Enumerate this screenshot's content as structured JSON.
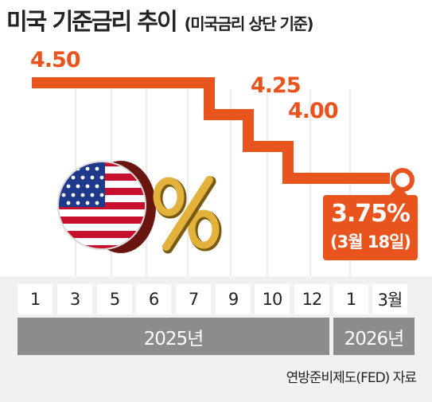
{
  "title": "미국 기준금리 추이",
  "subtitle": "(미국금리 상단 기준)",
  "callout": {
    "value": "3.75%",
    "date": "(3월 18일)"
  },
  "source": "연방준비제도(FED) 자료",
  "years": [
    {
      "label": "2025년"
    },
    {
      "label": "2026년"
    }
  ],
  "colors": {
    "accent": "#e9531e",
    "year_bar": "#8c8c8c",
    "band": "#f1f1f1"
  },
  "illustration": {
    "icons": [
      "us-flag-coin-icon",
      "percent-sign-icon"
    ]
  },
  "chart_data": {
    "type": "line",
    "step": true,
    "title": "미국 기준금리 추이",
    "subtitle": "(미국금리 상단 기준)",
    "x_labels": [
      "1",
      "3",
      "5",
      "6",
      "7",
      "9",
      "10",
      "12",
      "1",
      "3월"
    ],
    "series": [
      {
        "values": [
          4.5,
          4.5,
          4.5,
          4.5,
          4.5,
          4.25,
          4.0,
          3.75,
          3.75,
          3.75
        ]
      }
    ],
    "data_labels": [
      {
        "index": 0,
        "text": "4.50"
      },
      {
        "index": 5,
        "text": "4.25"
      },
      {
        "index": 6,
        "text": "4.00"
      }
    ],
    "highlight": {
      "index": 9,
      "value": 3.75,
      "text": "3.75%",
      "date": "(3월 18일)"
    },
    "ylim": [
      3.75,
      4.5
    ],
    "grid": true
  }
}
